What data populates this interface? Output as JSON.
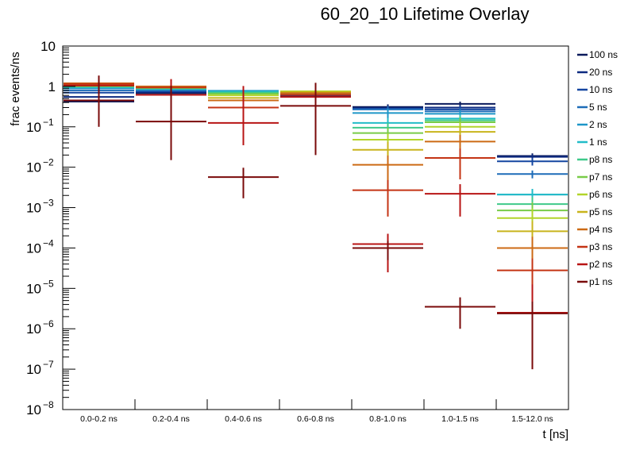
{
  "chart_data": {
    "type": "line",
    "subtype": "step-histogram-overlay-with-error-bars",
    "title": "60_20_10 Lifetime Overlay",
    "xlabel": "t [ns]",
    "ylabel": "frac events/ns",
    "yscale": "log",
    "ylim": [
      1e-08,
      10
    ],
    "grid": false,
    "legend_position": "right",
    "categories": [
      "0.0-0.2 ns",
      "0.2-0.4 ns",
      "0.4-0.6 ns",
      "0.6-0.8 ns",
      "0.8-1.0 ns",
      "1.0-1.5 ns",
      "1.5-12.0 ns"
    ],
    "y_tick_labels": [
      {
        "base": "10",
        "exp": ""
      },
      {
        "base": "1",
        "exp": ""
      },
      {
        "base": "10",
        "exp": "−1"
      },
      {
        "base": "10",
        "exp": "−2"
      },
      {
        "base": "10",
        "exp": "−3"
      },
      {
        "base": "10",
        "exp": "−4"
      },
      {
        "base": "10",
        "exp": "−5"
      },
      {
        "base": "10",
        "exp": "−6"
      },
      {
        "base": "10",
        "exp": "−7"
      },
      {
        "base": "10",
        "exp": "−8"
      }
    ],
    "series": [
      {
        "name": "100 ns",
        "color": "#0a1a5c",
        "values": [
          0.42,
          0.68,
          0.72,
          0.58,
          0.31,
          0.37,
          0.019
        ],
        "err_lo": [
          0.1,
          0.1,
          0.1,
          0.1,
          0.05,
          0.05,
          0.003
        ],
        "err_hi": [
          0.1,
          0.1,
          0.1,
          0.1,
          0.05,
          0.05,
          0.003
        ]
      },
      {
        "name": "20 ns",
        "color": "#0d2a80",
        "values": [
          0.55,
          0.72,
          0.73,
          0.6,
          0.29,
          0.3,
          0.018
        ],
        "err_lo": [
          0.1,
          0.1,
          0.1,
          0.1,
          0.05,
          0.05,
          0.003
        ],
        "err_hi": [
          0.1,
          0.1,
          0.1,
          0.1,
          0.05,
          0.05,
          0.003
        ]
      },
      {
        "name": "10 ns",
        "color": "#1446a0",
        "values": [
          0.7,
          0.76,
          0.75,
          0.62,
          0.28,
          0.27,
          0.014
        ],
        "err_lo": [
          0.1,
          0.1,
          0.1,
          0.1,
          0.05,
          0.05,
          0.003
        ],
        "err_hi": [
          0.1,
          0.1,
          0.1,
          0.1,
          0.05,
          0.05,
          0.003
        ]
      },
      {
        "name": "5 ns",
        "color": "#1d6cb8",
        "values": [
          0.8,
          0.8,
          0.77,
          0.64,
          0.27,
          0.24,
          0.0068
        ],
        "err_lo": [
          0.1,
          0.1,
          0.1,
          0.1,
          0.05,
          0.05,
          0.0015
        ],
        "err_hi": [
          0.1,
          0.1,
          0.1,
          0.1,
          0.05,
          0.05,
          0.0015
        ]
      },
      {
        "name": "2 ns",
        "color": "#1e96c8",
        "values": [
          0.9,
          0.84,
          0.78,
          0.66,
          0.22,
          0.21,
          0.0021
        ],
        "err_lo": [
          0.1,
          0.1,
          0.1,
          0.1,
          0.06,
          0.05,
          0.0008
        ],
        "err_hi": [
          0.1,
          0.1,
          0.1,
          0.1,
          0.06,
          0.05,
          0.0008
        ]
      },
      {
        "name": "1 ns",
        "color": "#22bcc8",
        "values": [
          0.95,
          0.87,
          0.74,
          0.68,
          0.125,
          0.16,
          0.0021
        ],
        "err_lo": [
          0.1,
          0.1,
          0.1,
          0.1,
          0.04,
          0.04,
          0.0008
        ],
        "err_hi": [
          0.1,
          0.1,
          0.1,
          0.1,
          0.04,
          0.04,
          0.0008
        ]
      },
      {
        "name": "p8 ns",
        "color": "#3ec98a",
        "values": [
          1.0,
          0.9,
          0.7,
          0.7,
          0.095,
          0.145,
          0.00122
        ],
        "err_lo": [
          0.1,
          0.1,
          0.1,
          0.1,
          0.03,
          0.04,
          0.0006
        ],
        "err_hi": [
          0.1,
          0.1,
          0.1,
          0.1,
          0.03,
          0.04,
          0.0006
        ]
      },
      {
        "name": "p7 ns",
        "color": "#78cc48",
        "values": [
          1.02,
          0.92,
          0.66,
          0.73,
          0.07,
          0.13,
          0.00085
        ],
        "err_lo": [
          0.1,
          0.1,
          0.1,
          0.1,
          0.025,
          0.035,
          0.0005
        ],
        "err_hi": [
          0.1,
          0.1,
          0.1,
          0.1,
          0.025,
          0.035,
          0.0005
        ]
      },
      {
        "name": "p6 ns",
        "color": "#b2d42a",
        "values": [
          1.05,
          0.95,
          0.6,
          0.76,
          0.048,
          0.1,
          0.00055
        ],
        "err_lo": [
          0.1,
          0.1,
          0.1,
          0.1,
          0.02,
          0.03,
          0.0004
        ],
        "err_hi": [
          0.1,
          0.1,
          0.1,
          0.1,
          0.02,
          0.03,
          0.0004
        ]
      },
      {
        "name": "p5 ns",
        "color": "#c8b41c",
        "values": [
          1.08,
          0.98,
          0.52,
          0.72,
          0.027,
          0.075,
          0.00026
        ],
        "err_lo": [
          0.1,
          0.1,
          0.1,
          0.1,
          0.015,
          0.025,
          0.0002
        ],
        "err_hi": [
          0.1,
          0.1,
          0.1,
          0.1,
          0.015,
          0.025,
          0.0002
        ]
      },
      {
        "name": "p4 ns",
        "color": "#cc6a14",
        "values": [
          1.2,
          1.0,
          0.45,
          0.68,
          0.0115,
          0.043,
          0.0001
        ],
        "err_lo": [
          0.1,
          0.1,
          0.1,
          0.1,
          0.008,
          0.02,
          9e-05
        ],
        "err_hi": [
          0.1,
          0.1,
          0.1,
          0.1,
          0.008,
          0.02,
          9e-05
        ]
      },
      {
        "name": "p3 ns",
        "color": "#c43414",
        "values": [
          1.15,
          0.94,
          0.3,
          0.62,
          0.0027,
          0.017,
          2.8e-05
        ],
        "err_lo": [
          0.1,
          0.1,
          0.1,
          0.1,
          0.0021,
          0.012,
          2.7e-05
        ],
        "err_hi": [
          0.1,
          0.1,
          0.1,
          0.1,
          0.0021,
          0.012,
          2.7e-05
        ]
      },
      {
        "name": "p2 ns",
        "color": "#b81414",
        "values": [
          1.05,
          0.62,
          0.125,
          0.55,
          0.000125,
          0.0022,
          2.5e-06
        ],
        "err_lo": [
          0.8,
          0.5,
          0.09,
          0.5,
          0.0001,
          0.0016,
          2.4e-06
        ],
        "err_hi": [
          0.8,
          0.9,
          0.9,
          0.6,
          0.0001,
          0.0016,
          1e-05
        ]
      },
      {
        "name": "p1 ns",
        "color": "#7a0a0a",
        "values": [
          0.45,
          0.135,
          0.0057,
          0.33,
          0.0001,
          3.5e-06,
          2.4e-06
        ],
        "err_lo": [
          0.35,
          0.12,
          0.004,
          0.31,
          5e-05,
          2.5e-06,
          2.3e-06
        ],
        "err_hi": [
          1.4,
          0.9,
          0.004,
          0.9,
          5e-05,
          2.5e-06,
          2.3e-06
        ]
      }
    ]
  }
}
